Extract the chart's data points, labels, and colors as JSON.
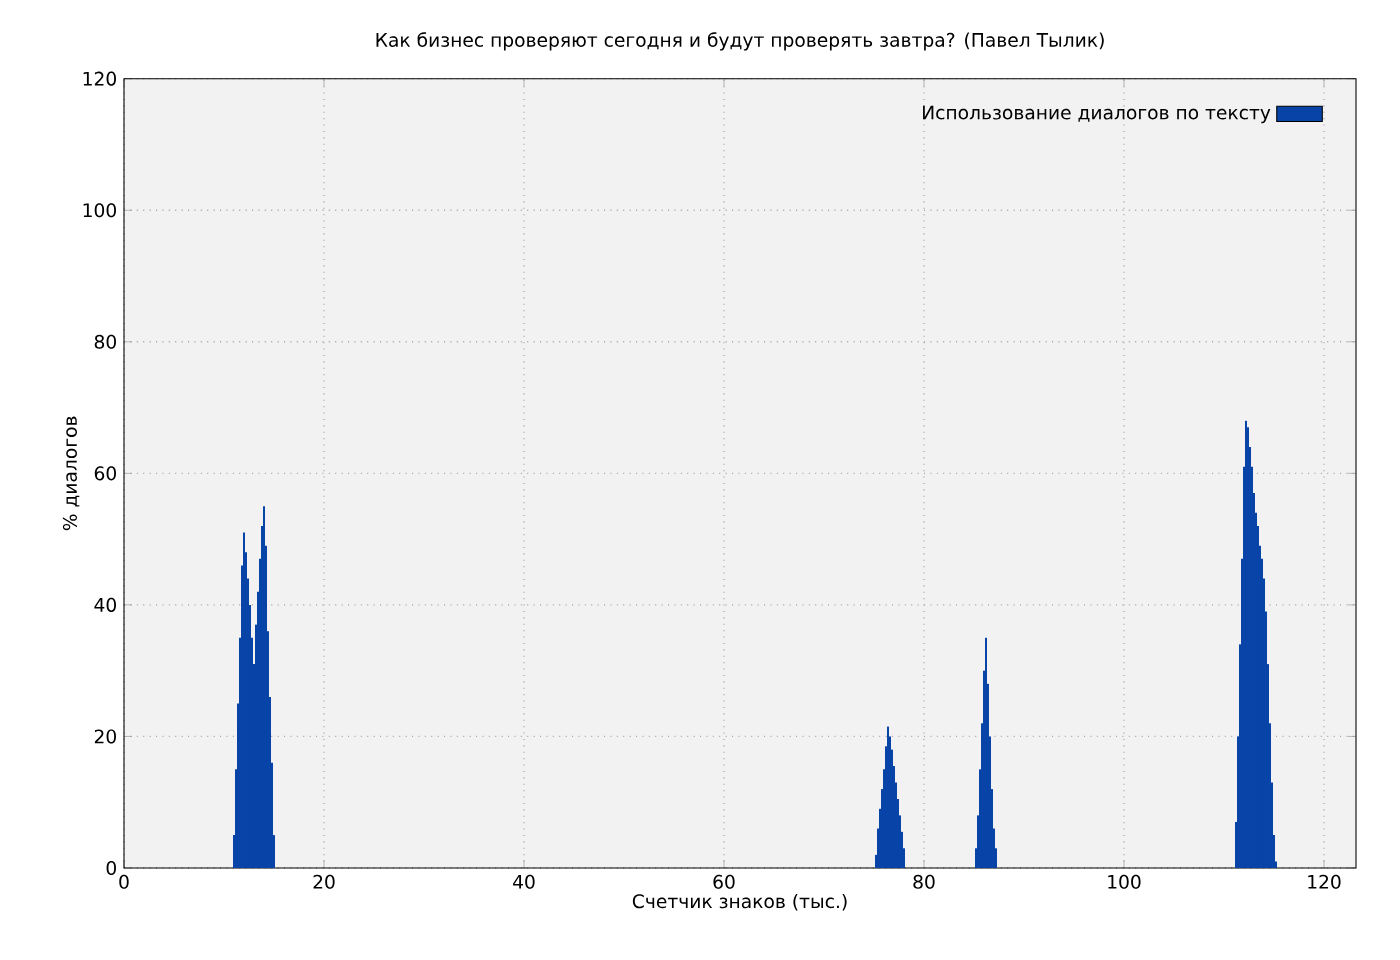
{
  "chart_data": {
    "type": "bar",
    "title": "Как бизнес проверяют сегодня и будут проверять завтра? (Павел Тылик)",
    "xlabel": "Счетчик знаков (тыс.)",
    "ylabel": "% диалогов",
    "legend": "top right",
    "grid": true,
    "xlim": [
      0,
      123.2
    ],
    "ylim": [
      0,
      120
    ],
    "xticks": [
      0,
      20,
      40,
      60,
      80,
      100,
      120
    ],
    "yticks": [
      0,
      20,
      40,
      60,
      80,
      100,
      120
    ],
    "series": [
      {
        "name": "Использование диалогов по тексту",
        "color": "#0844a8",
        "x": [
          11.0,
          11.2,
          11.4,
          11.6,
          11.8,
          12.0,
          12.2,
          12.4,
          12.6,
          12.8,
          13.0,
          13.2,
          13.4,
          13.6,
          13.8,
          14.0,
          14.2,
          14.4,
          14.6,
          14.8,
          15.0,
          75.2,
          75.4,
          75.6,
          75.8,
          76.0,
          76.2,
          76.4,
          76.6,
          76.8,
          77.0,
          77.2,
          77.4,
          77.6,
          77.8,
          78.0,
          85.2,
          85.4,
          85.6,
          85.8,
          86.0,
          86.2,
          86.4,
          86.6,
          86.8,
          87.0,
          87.2,
          111.2,
          111.4,
          111.6,
          111.8,
          112.0,
          112.2,
          112.4,
          112.6,
          112.8,
          113.0,
          113.2,
          113.4,
          113.6,
          113.8,
          114.0,
          114.2,
          114.4,
          114.6,
          114.8,
          115.0,
          115.2
        ],
        "values": [
          5,
          15,
          25,
          35,
          46,
          51,
          48,
          44,
          40,
          35,
          31,
          37,
          42,
          47,
          52,
          55,
          49,
          36,
          26,
          16,
          5,
          2,
          6,
          9,
          12,
          15,
          18.5,
          21.5,
          20,
          18,
          15.5,
          13,
          10.5,
          8,
          5.5,
          3,
          3,
          8,
          15,
          22,
          30,
          35,
          28,
          20,
          12,
          6,
          3,
          7,
          20,
          34,
          47,
          61,
          68,
          67,
          64,
          61,
          57,
          54,
          52,
          49,
          47,
          44,
          39,
          31,
          22,
          13,
          5,
          1
        ]
      }
    ]
  }
}
